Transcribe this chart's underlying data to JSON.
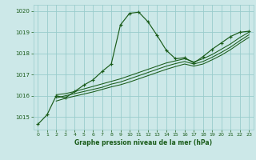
{
  "title": "Graphe pression niveau de la mer (hPa)",
  "background_color": "#cce8e8",
  "grid_color": "#99cccc",
  "line_color": "#1a5c1a",
  "label_color": "#1a5c1a",
  "xlim": [
    -0.5,
    23.5
  ],
  "ylim": [
    1014.4,
    1020.3
  ],
  "yticks": [
    1015,
    1016,
    1017,
    1018,
    1019,
    1020
  ],
  "xticks": [
    0,
    1,
    2,
    3,
    4,
    5,
    6,
    7,
    8,
    9,
    10,
    11,
    12,
    13,
    14,
    15,
    16,
    17,
    18,
    19,
    20,
    21,
    22,
    23
  ],
  "series1_x": [
    0,
    1,
    2,
    3,
    4,
    5,
    6,
    7,
    8,
    9,
    10,
    11,
    12,
    13,
    14,
    15,
    16,
    17,
    18,
    19,
    20,
    21,
    22,
    23
  ],
  "series1_y": [
    1014.65,
    1015.1,
    1016.0,
    1015.9,
    1016.2,
    1016.5,
    1016.75,
    1017.15,
    1017.5,
    1019.35,
    1019.9,
    1019.95,
    1019.5,
    1018.85,
    1018.15,
    1017.75,
    1017.8,
    1017.55,
    1017.85,
    1018.2,
    1018.5,
    1018.8,
    1019.0,
    1019.05
  ],
  "series2_x": [
    2,
    3,
    4,
    5,
    6,
    7,
    8,
    9,
    10,
    11,
    12,
    13,
    14,
    15,
    16,
    17,
    18,
    19,
    20,
    21,
    22,
    23
  ],
  "series2_y": [
    1016.05,
    1016.1,
    1016.2,
    1016.32,
    1016.44,
    1016.56,
    1016.68,
    1016.8,
    1016.95,
    1017.1,
    1017.25,
    1017.4,
    1017.55,
    1017.65,
    1017.75,
    1017.6,
    1017.75,
    1017.95,
    1018.2,
    1018.45,
    1018.75,
    1019.0
  ],
  "series3_x": [
    2,
    3,
    4,
    5,
    6,
    7,
    8,
    9,
    10,
    11,
    12,
    13,
    14,
    15,
    16,
    17,
    18,
    19,
    20,
    21,
    22,
    23
  ],
  "series3_y": [
    1015.9,
    1016.0,
    1016.1,
    1016.2,
    1016.3,
    1016.4,
    1016.55,
    1016.65,
    1016.8,
    1016.95,
    1017.1,
    1017.25,
    1017.4,
    1017.52,
    1017.62,
    1017.5,
    1017.62,
    1017.82,
    1018.05,
    1018.3,
    1018.6,
    1018.88
  ],
  "series4_x": [
    2,
    3,
    4,
    5,
    6,
    7,
    8,
    9,
    10,
    11,
    12,
    13,
    14,
    15,
    16,
    17,
    18,
    19,
    20,
    21,
    22,
    23
  ],
  "series4_y": [
    1015.75,
    1015.88,
    1015.98,
    1016.08,
    1016.18,
    1016.3,
    1016.42,
    1016.52,
    1016.65,
    1016.8,
    1016.95,
    1017.1,
    1017.25,
    1017.38,
    1017.5,
    1017.4,
    1017.5,
    1017.7,
    1017.92,
    1018.18,
    1018.48,
    1018.76
  ]
}
